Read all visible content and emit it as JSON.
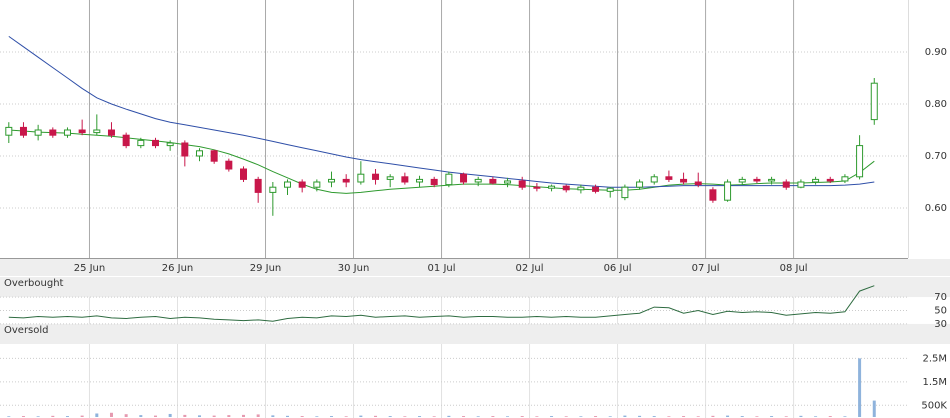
{
  "chart_data": [
    {
      "type": "candlestick",
      "xlim": [
        -0.6,
        61.3
      ],
      "xticks": [
        {
          "value": 5.5,
          "label": "25 Jun"
        },
        {
          "value": 11.5,
          "label": "26 Jun"
        },
        {
          "value": 17.5,
          "label": "29 Jun"
        },
        {
          "value": 23.5,
          "label": "30 Jun"
        },
        {
          "value": 29.5,
          "label": "01 Jul"
        },
        {
          "value": 35.5,
          "label": "02 Jul"
        },
        {
          "value": 41.5,
          "label": "06 Jul"
        },
        {
          "value": 47.5,
          "label": "07 Jul"
        },
        {
          "value": 53.5,
          "label": "08 Jul"
        }
      ],
      "ylim": [
        0.5,
        1.0
      ],
      "yticks": [
        {
          "value": 0.6,
          "label": "0.60"
        },
        {
          "value": 0.7,
          "label": "0.70"
        },
        {
          "value": 0.8,
          "label": "0.80"
        },
        {
          "value": 0.9,
          "label": "0.90"
        }
      ],
      "up_color": "#2e9a2e",
      "down_color": "#c8174a",
      "open": [
        0.74,
        0.755,
        0.74,
        0.75,
        0.74,
        0.75,
        0.745,
        0.75,
        0.74,
        0.72,
        0.73,
        0.72,
        0.725,
        0.7,
        0.71,
        0.69,
        0.675,
        0.655,
        0.63,
        0.64,
        0.65,
        0.64,
        0.65,
        0.655,
        0.65,
        0.665,
        0.655,
        0.66,
        0.65,
        0.655,
        0.645,
        0.665,
        0.65,
        0.655,
        0.648,
        0.652,
        0.64,
        0.638,
        0.642,
        0.635,
        0.64,
        0.632,
        0.62,
        0.64,
        0.65,
        0.66,
        0.655,
        0.65,
        0.635,
        0.615,
        0.65,
        0.655,
        0.652,
        0.65,
        0.64,
        0.65,
        0.655,
        0.652,
        0.66,
        0.77
      ],
      "high": [
        0.765,
        0.765,
        0.76,
        0.755,
        0.755,
        0.77,
        0.78,
        0.765,
        0.745,
        0.735,
        0.735,
        0.73,
        0.73,
        0.715,
        0.712,
        0.695,
        0.68,
        0.66,
        0.65,
        0.655,
        0.655,
        0.655,
        0.67,
        0.665,
        0.69,
        0.675,
        0.665,
        0.668,
        0.662,
        0.66,
        0.67,
        0.668,
        0.66,
        0.66,
        0.658,
        0.66,
        0.648,
        0.645,
        0.645,
        0.645,
        0.645,
        0.64,
        0.645,
        0.655,
        0.665,
        0.672,
        0.668,
        0.668,
        0.64,
        0.655,
        0.66,
        0.66,
        0.66,
        0.655,
        0.655,
        0.66,
        0.66,
        0.665,
        0.74,
        0.85
      ],
      "low": [
        0.725,
        0.735,
        0.73,
        0.735,
        0.735,
        0.74,
        0.74,
        0.735,
        0.715,
        0.715,
        0.715,
        0.71,
        0.68,
        0.69,
        0.685,
        0.67,
        0.65,
        0.61,
        0.585,
        0.625,
        0.63,
        0.632,
        0.64,
        0.64,
        0.645,
        0.645,
        0.64,
        0.645,
        0.64,
        0.64,
        0.64,
        0.645,
        0.642,
        0.645,
        0.64,
        0.635,
        0.632,
        0.632,
        0.63,
        0.628,
        0.628,
        0.62,
        0.615,
        0.635,
        0.645,
        0.65,
        0.645,
        0.64,
        0.61,
        0.612,
        0.645,
        0.648,
        0.645,
        0.635,
        0.638,
        0.645,
        0.648,
        0.648,
        0.655,
        0.76
      ],
      "close": [
        0.755,
        0.74,
        0.75,
        0.74,
        0.75,
        0.745,
        0.75,
        0.74,
        0.72,
        0.73,
        0.72,
        0.725,
        0.7,
        0.71,
        0.69,
        0.675,
        0.655,
        0.63,
        0.64,
        0.65,
        0.64,
        0.65,
        0.655,
        0.65,
        0.665,
        0.655,
        0.66,
        0.65,
        0.655,
        0.645,
        0.665,
        0.65,
        0.655,
        0.648,
        0.652,
        0.64,
        0.638,
        0.642,
        0.635,
        0.64,
        0.632,
        0.638,
        0.64,
        0.65,
        0.66,
        0.655,
        0.65,
        0.645,
        0.615,
        0.65,
        0.655,
        0.652,
        0.655,
        0.64,
        0.65,
        0.655,
        0.652,
        0.66,
        0.72,
        0.84
      ],
      "lines": [
        {
          "color": "#2e9a2e",
          "values": [
            0.75,
            0.748,
            0.746,
            0.745,
            0.744,
            0.742,
            0.74,
            0.738,
            0.735,
            0.732,
            0.729,
            0.726,
            0.722,
            0.718,
            0.712,
            0.704,
            0.694,
            0.683,
            0.67,
            0.658,
            0.646,
            0.636,
            0.63,
            0.628,
            0.63,
            0.633,
            0.636,
            0.638,
            0.64,
            0.642,
            0.644,
            0.646,
            0.646,
            0.646,
            0.645,
            0.643,
            0.641,
            0.639,
            0.637,
            0.636,
            0.635,
            0.634,
            0.634,
            0.636,
            0.64,
            0.644,
            0.646,
            0.647,
            0.646,
            0.644,
            0.645,
            0.647,
            0.648,
            0.648,
            0.648,
            0.649,
            0.65,
            0.652,
            0.668,
            0.69
          ]
        },
        {
          "color": "#2f4fa8",
          "values": [
            0.93,
            0.91,
            0.89,
            0.87,
            0.85,
            0.83,
            0.812,
            0.8,
            0.79,
            0.781,
            0.772,
            0.765,
            0.76,
            0.755,
            0.75,
            0.745,
            0.74,
            0.734,
            0.728,
            0.722,
            0.716,
            0.71,
            0.704,
            0.698,
            0.693,
            0.689,
            0.685,
            0.681,
            0.677,
            0.673,
            0.669,
            0.666,
            0.663,
            0.66,
            0.657,
            0.654,
            0.651,
            0.648,
            0.646,
            0.644,
            0.642,
            0.64,
            0.64,
            0.64,
            0.641,
            0.642,
            0.643,
            0.643,
            0.643,
            0.643,
            0.643,
            0.643,
            0.643,
            0.643,
            0.643,
            0.643,
            0.643,
            0.644,
            0.646,
            0.65
          ]
        }
      ],
      "grid": true
    },
    {
      "type": "line",
      "ylim": [
        0,
        100
      ],
      "yticks": [
        30,
        50,
        70
      ],
      "color": "#2e6b40",
      "bands": [
        {
          "label": "Overbought",
          "range": [
            70,
            100
          ]
        },
        {
          "label": "Oversold",
          "range": [
            0,
            30
          ]
        }
      ],
      "values": [
        40,
        39,
        41,
        40,
        41,
        40,
        42,
        39,
        38,
        40,
        41,
        38,
        40,
        39,
        37,
        36,
        35,
        36,
        34,
        38,
        40,
        39,
        42,
        41,
        43,
        40,
        41,
        42,
        40,
        41,
        42,
        40,
        41,
        41,
        40,
        40,
        41,
        40,
        41,
        40,
        40,
        42,
        44,
        46,
        55,
        54,
        46,
        50,
        44,
        49,
        47,
        48,
        47,
        43,
        45,
        47,
        46,
        48,
        79,
        87
      ]
    },
    {
      "type": "bar",
      "ylim": [
        0,
        2900000
      ],
      "yticks": [
        {
          "value": 500000,
          "label": "500K"
        },
        {
          "value": 1500000,
          "label": "1.5M"
        },
        {
          "value": 2500000,
          "label": "2.5M"
        }
      ],
      "up_color": "#8fb3dc",
      "down_color": "#e59ab0",
      "values": [
        30000,
        40000,
        30000,
        50000,
        40000,
        60000,
        150000,
        180000,
        120000,
        80000,
        60000,
        130000,
        90000,
        70000,
        60000,
        80000,
        90000,
        110000,
        70000,
        50000,
        40000,
        30000,
        40000,
        30000,
        60000,
        50000,
        40000,
        30000,
        40000,
        30000,
        50000,
        40000,
        30000,
        40000,
        30000,
        40000,
        30000,
        40000,
        30000,
        30000,
        40000,
        30000,
        60000,
        50000,
        40000,
        30000,
        40000,
        30000,
        50000,
        60000,
        40000,
        30000,
        40000,
        30000,
        50000,
        30000,
        40000,
        30000,
        2500000,
        700000
      ]
    }
  ]
}
